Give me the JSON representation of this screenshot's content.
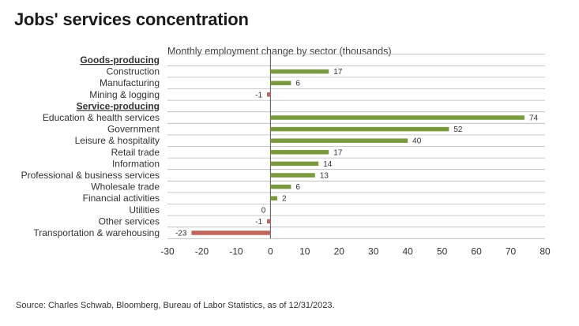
{
  "title": "Jobs' services concentration",
  "subtitle": "Monthly employment change by sector (thousands)",
  "source": "Source: Charles Schwab, Bloomberg, Bureau of Labor Statistics, as of 12/31/2023.",
  "colors": {
    "positive": "#7a9a3f",
    "negative": "#c0665a",
    "grid": "#b8b8b8",
    "text": "#333333"
  },
  "chart_data": {
    "type": "bar",
    "orientation": "horizontal",
    "title": "Jobs' services concentration",
    "subtitle": "Monthly employment change by sector (thousands)",
    "xlim": [
      -30,
      80
    ],
    "x_ticks": [
      -30,
      -20,
      -10,
      0,
      10,
      20,
      30,
      40,
      50,
      60,
      70,
      80
    ],
    "grid": true,
    "rows": [
      {
        "label": "Goods-producing",
        "header": true
      },
      {
        "label": "Construction",
        "value": 17
      },
      {
        "label": "Manufacturing",
        "value": 6
      },
      {
        "label": "Mining & logging",
        "value": -1
      },
      {
        "label": "Service-producing",
        "header": true
      },
      {
        "label": "Education & health services",
        "value": 74
      },
      {
        "label": "Government",
        "value": 52
      },
      {
        "label": "Leisure & hospitality",
        "value": 40
      },
      {
        "label": "Retail trade",
        "value": 17
      },
      {
        "label": "Information",
        "value": 14
      },
      {
        "label": "Professional & business services",
        "value": 13
      },
      {
        "label": "Wholesale trade",
        "value": 6
      },
      {
        "label": "Financial activities",
        "value": 2
      },
      {
        "label": "Utilities",
        "value": 0
      },
      {
        "label": "Other services",
        "value": -1
      },
      {
        "label": "Transportation & warehousing",
        "value": -23
      }
    ]
  }
}
